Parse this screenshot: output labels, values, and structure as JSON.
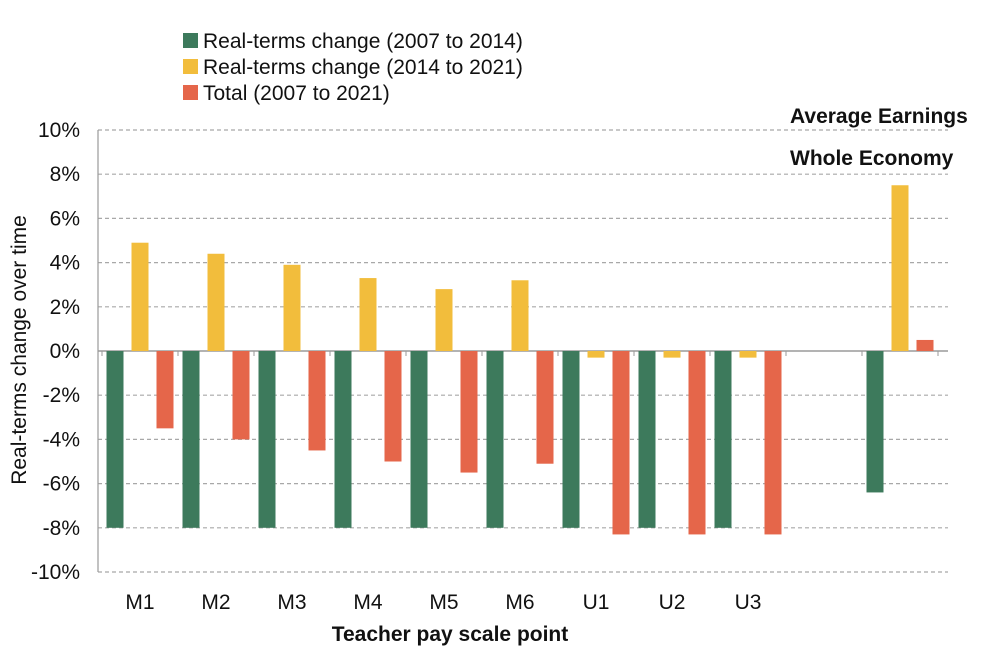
{
  "chart_data": {
    "type": "bar",
    "categories": [
      "M1",
      "M2",
      "M3",
      "M4",
      "M5",
      "M6",
      "U1",
      "U2",
      "U3",
      "",
      "Whole Economy"
    ],
    "category_labels": [
      "M1",
      "M2",
      "M3",
      "M4",
      "M5",
      "M6",
      "U1",
      "U2",
      "U3"
    ],
    "series": [
      {
        "name": "Real-terms change (2007 to 2014)",
        "color": "#3d7a5c",
        "values": [
          -8.0,
          -8.0,
          -8.0,
          -8.0,
          -8.0,
          -8.0,
          -8.0,
          -8.0,
          -8.0,
          null,
          -6.4
        ]
      },
      {
        "name": "Real-terms change (2014 to 2021)",
        "color": "#f2bd3c",
        "values": [
          4.9,
          4.4,
          3.9,
          3.3,
          2.8,
          3.2,
          -0.3,
          -0.3,
          -0.3,
          null,
          7.5
        ]
      },
      {
        "name": "Total (2007 to 2021)",
        "color": "#e5664a",
        "values": [
          -3.5,
          -4.0,
          -4.5,
          -5.0,
          -5.5,
          -5.1,
          -8.3,
          -8.3,
          -8.3,
          null,
          0.5
        ]
      }
    ],
    "xlabel": "Teacher pay scale point",
    "ylabel": "Real-terms change over time",
    "ylim": [
      -10,
      10
    ],
    "yticks": [
      "-10%",
      "-8%",
      "-6%",
      "-4%",
      "-2%",
      "0%",
      "2%",
      "4%",
      "6%",
      "8%",
      "10%"
    ],
    "annotations": [
      "Average Earnings",
      "Whole Economy"
    ],
    "grid": "horizontal dashed",
    "legend_position": "top-left"
  }
}
